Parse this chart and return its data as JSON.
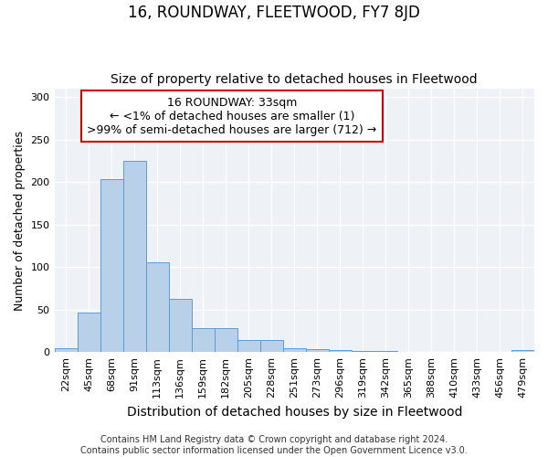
{
  "title": "16, ROUNDWAY, FLEETWOOD, FY7 8JD",
  "subtitle": "Size of property relative to detached houses in Fleetwood",
  "xlabel": "Distribution of detached houses by size in Fleetwood",
  "ylabel": "Number of detached properties",
  "categories": [
    "22sqm",
    "45sqm",
    "68sqm",
    "91sqm",
    "113sqm",
    "136sqm",
    "159sqm",
    "182sqm",
    "205sqm",
    "228sqm",
    "251sqm",
    "273sqm",
    "296sqm",
    "319sqm",
    "342sqm",
    "365sqm",
    "388sqm",
    "410sqm",
    "433sqm",
    "456sqm",
    "479sqm"
  ],
  "values": [
    5,
    46,
    204,
    225,
    106,
    63,
    28,
    28,
    14,
    14,
    5,
    3,
    2,
    1,
    1,
    0,
    0,
    0,
    0,
    0,
    2
  ],
  "bar_color": "#b8d0e8",
  "bar_edge_color": "#5b9bd5",
  "annotation_text": "16 ROUNDWAY: 33sqm\n← <1% of detached houses are smaller (1)\n>99% of semi-detached houses are larger (712) →",
  "footer": "Contains HM Land Registry data © Crown copyright and database right 2024.\nContains public sector information licensed under the Open Government Licence v3.0.",
  "ylim": [
    0,
    310
  ],
  "yticks": [
    0,
    50,
    100,
    150,
    200,
    250,
    300
  ],
  "bg_color": "#eef2f7",
  "annotation_box_color": "#ffffff",
  "annotation_box_edge": "#cc0000",
  "title_fontsize": 12,
  "subtitle_fontsize": 10,
  "xlabel_fontsize": 10,
  "ylabel_fontsize": 9,
  "tick_fontsize": 8,
  "footer_fontsize": 7,
  "annotation_fontsize": 9
}
